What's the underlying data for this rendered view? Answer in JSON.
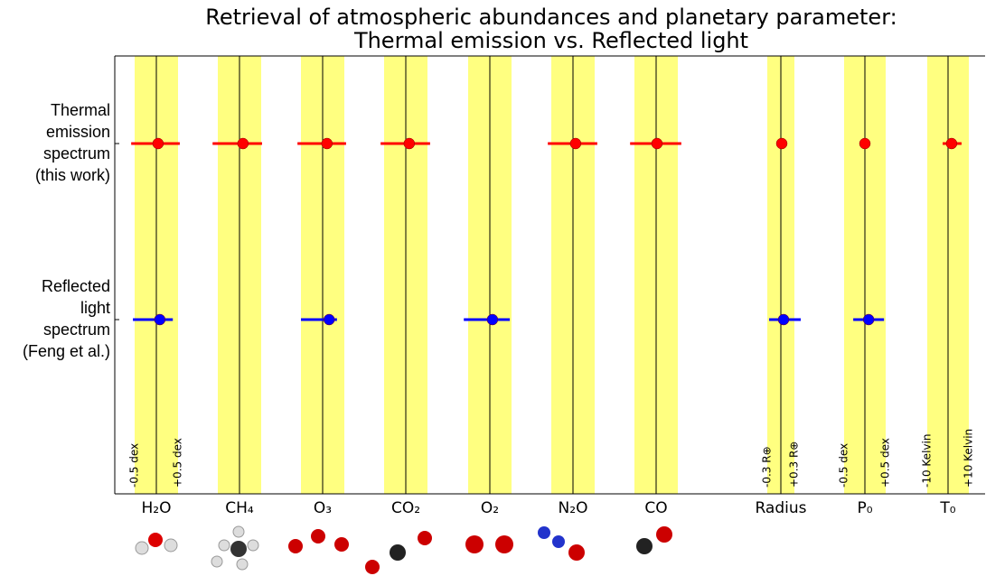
{
  "chart_data": {
    "type": "errorbar",
    "title": [
      "Retrieval of atmospheric abundances and planetary parameter:",
      "Thermal emission vs. Reflected light"
    ],
    "band_color": "#ffff80",
    "rows": [
      {
        "label": [
          "Thermal",
          "emission",
          "spectrum",
          "(this work)"
        ],
        "color": "#ff0000"
      },
      {
        "label": [
          "Reflected",
          "light",
          "spectrum",
          "(Feng et al.)"
        ],
        "color": "#0000ff"
      }
    ],
    "parameters": [
      {
        "name": "H₂O",
        "band": [
          {
            "value": -0.5,
            "label": "-0.5 dex"
          },
          {
            "value": 0.5,
            "label": "+0.5 dex"
          }
        ],
        "values": [
          0.04,
          0.08
        ],
        "lower": [
          -0.58,
          -0.54
        ],
        "upper": [
          0.54,
          0.38
        ]
      },
      {
        "name": "CH₄",
        "band": [
          -0.5,
          0.5
        ],
        "values": [
          0.08,
          null
        ],
        "lower": [
          -0.62,
          null
        ],
        "upper": [
          0.52,
          null
        ]
      },
      {
        "name": "O₃",
        "band": [
          -0.5,
          0.5
        ],
        "values": [
          0.1,
          0.15
        ],
        "lower": [
          -0.58,
          -0.5
        ],
        "upper": [
          0.54,
          0.33
        ]
      },
      {
        "name": "CO₂",
        "band": [
          -0.5,
          0.5
        ],
        "values": [
          0.08,
          null
        ],
        "lower": [
          -0.58,
          null
        ],
        "upper": [
          0.56,
          null
        ]
      },
      {
        "name": "O₂",
        "band": [
          -0.5,
          0.5
        ],
        "values": [
          null,
          0.06
        ],
        "lower": [
          null,
          -0.6
        ],
        "upper": [
          null,
          0.46
        ]
      },
      {
        "name": "N₂O",
        "band": [
          -0.5,
          0.5
        ],
        "values": [
          0.06,
          null
        ],
        "lower": [
          -0.58,
          null
        ],
        "upper": [
          0.56,
          null
        ]
      },
      {
        "name": "CO",
        "band": [
          -0.5,
          0.5
        ],
        "values": [
          0.02,
          null
        ],
        "lower": [
          -0.6,
          null
        ],
        "upper": [
          0.58,
          null
        ]
      },
      {
        "name": "Radius",
        "band": [
          {
            "value": -0.3,
            "label": "-0.3 R⊕"
          },
          {
            "value": 0.3,
            "label": "+0.3 R⊕"
          }
        ],
        "values": [
          0.02,
          0.06
        ],
        "lower": [
          -0.06,
          -0.26
        ],
        "upper": [
          0.08,
          0.44
        ]
      },
      {
        "name": "P₀",
        "band": [
          {
            "value": -0.5,
            "label": "-0.5 dex"
          },
          {
            "value": 0.5,
            "label": "+0.5 dex"
          }
        ],
        "values": [
          0,
          0.09
        ],
        "lower": [
          -0.09,
          -0.28
        ],
        "upper": [
          0.11,
          0.46
        ]
      },
      {
        "name": "T₀",
        "band": [
          {
            "value": -10,
            "label": "-10 Kelvin"
          },
          {
            "value": 10,
            "label": "+10 Kelvin"
          }
        ],
        "values": [
          1.7,
          null
        ],
        "lower": [
          -2.6,
          null
        ],
        "upper": [
          6.5,
          null
        ]
      }
    ]
  }
}
